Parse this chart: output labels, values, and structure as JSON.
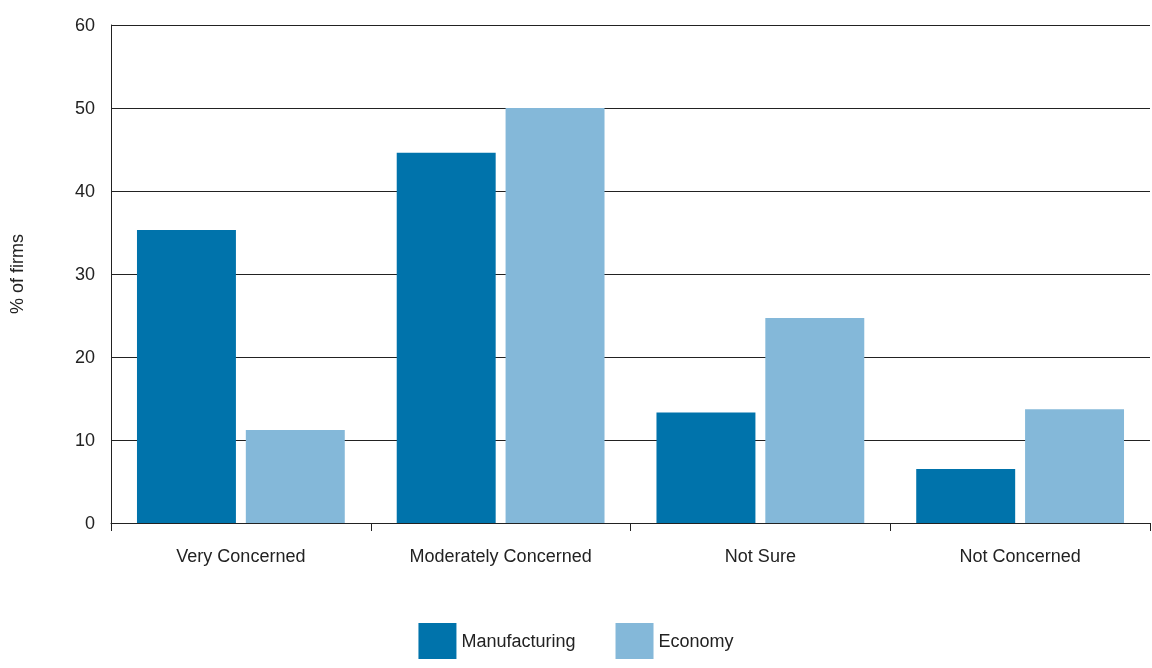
{
  "chart_data": {
    "type": "bar",
    "ylabel": "% of firms",
    "categories": [
      "Very Concerned",
      "Moderately Concerned",
      "Not Sure",
      "Not Concerned"
    ],
    "series": [
      {
        "name": "Manufacturing",
        "color": "#0073ab",
        "values": [
          35.3,
          44.6,
          13.3,
          6.5
        ]
      },
      {
        "name": "Economy",
        "color": "#84b8d9",
        "values": [
          11.2,
          50.0,
          24.7,
          13.7
        ]
      }
    ],
    "ylim": [
      0,
      60
    ],
    "yticks": [
      0,
      10,
      20,
      30,
      40,
      50,
      60
    ],
    "grid": true,
    "legend": "bottom"
  }
}
